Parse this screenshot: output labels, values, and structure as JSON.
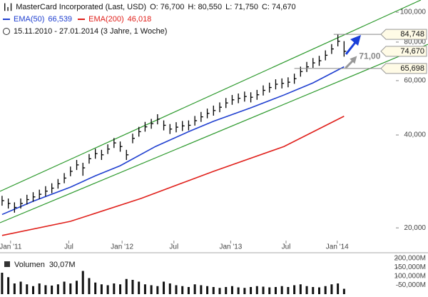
{
  "chart_data": [
    {
      "type": "ohlc",
      "title": "MasterCard Incorporated (Last, USD)",
      "quote_labels": [
        "O: 76,700",
        "H: 80,550",
        "L: 71,750",
        "C: 74,670"
      ],
      "subtitle": "15.11.2010 - 27.01.2014 (3 Jahre, 1 Woche)",
      "log": true,
      "xlim": [
        -1,
        190
      ],
      "xticks": [
        {
          "value": 4.1,
          "label": "Jan '11"
        },
        {
          "value": 32.2,
          "label": "Jul"
        },
        {
          "value": 57.9,
          "label": "Jan '12"
        },
        {
          "value": 82.9,
          "label": "Jul"
        },
        {
          "value": 110.3,
          "label": "Jan '13"
        },
        {
          "value": 137,
          "label": "Jul"
        },
        {
          "value": 161.7,
          "label": "Jan '14"
        }
      ],
      "ylim": [
        17.9,
        109.5
      ],
      "yticks": [
        {
          "value": 20,
          "label": "20,000"
        },
        {
          "value": 40,
          "label": "40,000"
        },
        {
          "value": 60,
          "label": "60,000"
        },
        {
          "value": 80,
          "label": "80,000"
        },
        {
          "value": 100,
          "label": "100,000"
        }
      ],
      "series": [
        {
          "name": "MasterCard Incorporated (Last, USD)",
          "color": "#000000",
          "x": [
            0,
            3,
            6,
            9,
            12,
            15,
            18,
            21,
            24,
            27,
            30,
            33,
            36,
            39,
            42,
            45,
            48,
            51,
            54,
            57,
            60,
            63,
            66,
            69,
            72,
            75,
            78,
            81,
            84,
            87,
            90,
            93,
            96,
            99,
            102,
            105,
            108,
            111,
            114,
            117,
            120,
            123,
            126,
            129,
            132,
            135,
            138,
            141,
            144,
            147,
            150,
            153,
            156,
            159,
            162,
            165
          ],
          "high": [
            25.4,
            24.9,
            24.2,
            24.9,
            25.6,
            26.1,
            26.6,
            27.3,
            27.9,
            28.8,
            30.1,
            31.6,
            33.2,
            32.5,
            34.7,
            36.1,
            35.8,
            37.3,
            39.1,
            38.1,
            35.8,
            40.4,
            42.5,
            44.1,
            45.1,
            46.7,
            44.6,
            43.4,
            44.0,
            44.4,
            44.6,
            46.1,
            47.5,
            48.7,
            49.8,
            51.0,
            52.7,
            53.9,
            54.5,
            55.3,
            55.0,
            56.0,
            57.9,
            59.1,
            60.6,
            61.0,
            61.5,
            63.2,
            66.6,
            69.0,
            71.0,
            72.2,
            75.2,
            78.8,
            84.748,
            80.55
          ],
          "low": [
            23.6,
            23.1,
            22.4,
            23.1,
            23.8,
            24.3,
            24.8,
            25.3,
            25.9,
            26.8,
            27.9,
            29.4,
            30.8,
            29.5,
            32.3,
            33.5,
            33.2,
            34.7,
            36.3,
            35.3,
            33.2,
            37.6,
            39.5,
            41.0,
            41.9,
            43.3,
            41.4,
            40.3,
            40.8,
            41.2,
            41.4,
            42.9,
            44.1,
            45.3,
            46.2,
            47.4,
            48.9,
            50.1,
            50.7,
            51.3,
            51.0,
            52.0,
            53.7,
            54.9,
            56.2,
            56.6,
            57.1,
            58.6,
            61.8,
            64.0,
            66.0,
            67.0,
            69.8,
            73.2,
            77.5,
            71.75
          ],
          "values": [
            24.5,
            24.0,
            23.3,
            24.0,
            24.7,
            25.2,
            25.7,
            26.3,
            26.9,
            27.8,
            29.0,
            30.5,
            32.0,
            31.3,
            33.5,
            34.8,
            34.5,
            36.0,
            37.7,
            36.7,
            34.5,
            39.0,
            41.0,
            42.5,
            43.5,
            45.0,
            43.0,
            41.8,
            42.4,
            42.8,
            43.0,
            44.5,
            45.8,
            47.0,
            48.0,
            49.2,
            50.8,
            52.0,
            52.6,
            53.3,
            53.0,
            54.0,
            55.8,
            57.0,
            58.4,
            58.8,
            59.3,
            60.9,
            64.2,
            66.5,
            68.5,
            69.6,
            72.5,
            76.0,
            80.5,
            74.67
          ]
        },
        {
          "name": "EMA(50)",
          "color": "#2040d0",
          "x": [
            0,
            15,
            33,
            45,
            57,
            74,
            90,
            102,
            120,
            136,
            150,
            165
          ],
          "values": [
            22.1,
            24.4,
            27.1,
            29.5,
            31.8,
            36.7,
            41.0,
            44.3,
            49.0,
            53.9,
            59.0,
            66.539
          ],
          "value_labels": [
            null,
            null,
            null,
            null,
            null,
            null,
            null,
            null,
            null,
            null,
            null,
            "66,539"
          ]
        },
        {
          "name": "EMA(200)",
          "color": "#e0201b",
          "x": [
            0,
            33,
            67,
            102,
            136,
            165
          ],
          "values": [
            18.9,
            21.0,
            24.9,
            30.5,
            36.7,
            46.018
          ],
          "value_labels": [
            null,
            null,
            null,
            null,
            null,
            "46,018"
          ]
        }
      ],
      "annotations": [
        {
          "style": "hline",
          "x": 160,
          "value": 84.748,
          "label": "84,748"
        },
        {
          "style": "box",
          "value": 74.67,
          "label": "74,670"
        },
        {
          "style": "hline",
          "x": 141,
          "value": 65.698,
          "label": "65,698"
        },
        {
          "style": "target",
          "value": 71,
          "label": "71,00"
        }
      ]
    },
    {
      "type": "bar",
      "title": "Volumen",
      "color": "#111111",
      "xlim": [
        -1,
        190
      ],
      "ylim": [
        0,
        228
      ],
      "yticks": [
        {
          "value": 50,
          "label": "50,000M"
        },
        {
          "value": 100,
          "label": "100,000M"
        },
        {
          "value": 150,
          "label": "150,000M"
        },
        {
          "value": 200,
          "label": "200,000M"
        }
      ],
      "x": [
        0,
        3,
        6,
        9,
        12,
        15,
        18,
        21,
        24,
        27,
        30,
        33,
        36,
        39,
        42,
        45,
        48,
        51,
        54,
        57,
        60,
        63,
        66,
        69,
        72,
        75,
        78,
        81,
        84,
        87,
        90,
        93,
        96,
        99,
        102,
        105,
        108,
        111,
        114,
        117,
        120,
        123,
        126,
        129,
        132,
        135,
        138,
        141,
        144,
        147,
        150,
        153,
        156,
        159,
        162,
        165
      ],
      "values": [
        120,
        95,
        60,
        70,
        55,
        45,
        60,
        50,
        48,
        55,
        70,
        60,
        75,
        130,
        90,
        65,
        55,
        50,
        60,
        55,
        85,
        80,
        70,
        55,
        50,
        45,
        70,
        60,
        50,
        45,
        40,
        55,
        50,
        45,
        40,
        35,
        40,
        45,
        38,
        35,
        40,
        45,
        42,
        38,
        40,
        45,
        40,
        50,
        55,
        45,
        40,
        38,
        45,
        55,
        60,
        30.07
      ],
      "value_labels": [
        null,
        null,
        null,
        null,
        null,
        null,
        null,
        null,
        null,
        null,
        null,
        null,
        null,
        null,
        null,
        null,
        null,
        null,
        null,
        null,
        null,
        null,
        null,
        null,
        null,
        null,
        null,
        null,
        null,
        null,
        null,
        null,
        null,
        null,
        null,
        null,
        null,
        null,
        null,
        null,
        null,
        null,
        null,
        null,
        null,
        null,
        null,
        null,
        null,
        null,
        null,
        null,
        null,
        null,
        null,
        "30,07M"
      ]
    }
  ]
}
